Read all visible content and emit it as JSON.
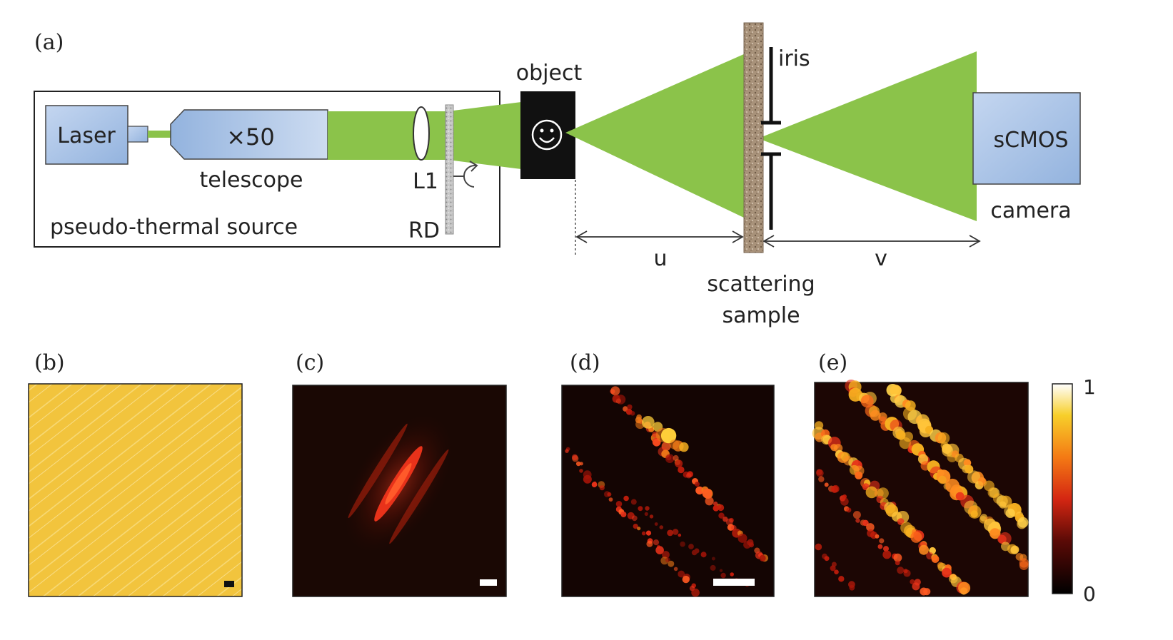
{
  "panel_a": {
    "label": "(a)",
    "source_box_label": "pseudo-thermal source",
    "laser_label": "Laser",
    "telescope_magnification": "×50",
    "telescope_label": "telescope",
    "lens_label": "L1",
    "rotating_diffuser_label": "RD",
    "object_label": "object",
    "iris_label": "iris",
    "scattering_label_line1": "scattering",
    "scattering_label_line2": "sample",
    "camera_box_label": "sCMOS",
    "camera_label": "camera",
    "distance_u": "u",
    "distance_v": "v"
  },
  "panels": [
    {
      "label": "(b)"
    },
    {
      "label": "(c)"
    },
    {
      "label": "(d)"
    },
    {
      "label": "(e)"
    }
  ],
  "colorbar": {
    "max_label": "1",
    "min_label": "0"
  },
  "colors": {
    "beam": "#8bc34a",
    "box_fill": "#a9c4e8",
    "panel_b": "#f2c43d",
    "dark_bg": "#1a0804",
    "speckle": "#ff3a12"
  }
}
